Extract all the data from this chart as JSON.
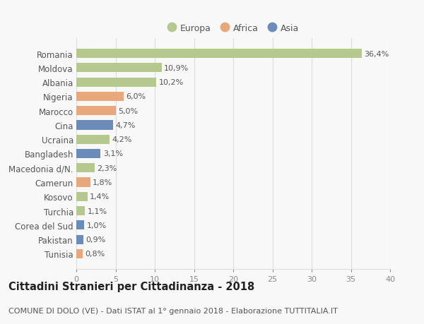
{
  "categories": [
    "Tunisia",
    "Pakistan",
    "Corea del Sud",
    "Turchia",
    "Kosovo",
    "Camerun",
    "Macedonia d/N.",
    "Bangladesh",
    "Ucraina",
    "Cina",
    "Marocco",
    "Nigeria",
    "Albania",
    "Moldova",
    "Romania"
  ],
  "values": [
    0.8,
    0.9,
    1.0,
    1.1,
    1.4,
    1.8,
    2.3,
    3.1,
    4.2,
    4.7,
    5.0,
    6.0,
    10.2,
    10.9,
    36.4
  ],
  "labels": [
    "0,8%",
    "0,9%",
    "1,0%",
    "1,1%",
    "1,4%",
    "1,8%",
    "2,3%",
    "3,1%",
    "4,2%",
    "4,7%",
    "5,0%",
    "6,0%",
    "10,2%",
    "10,9%",
    "36,4%"
  ],
  "continents": [
    "Africa",
    "Asia",
    "Asia",
    "Europa",
    "Europa",
    "Africa",
    "Europa",
    "Asia",
    "Europa",
    "Asia",
    "Africa",
    "Africa",
    "Europa",
    "Europa",
    "Europa"
  ],
  "continent_colors": {
    "Europa": "#b5c98e",
    "Africa": "#e8a87c",
    "Asia": "#6b8cba"
  },
  "legend_labels": [
    "Europa",
    "Africa",
    "Asia"
  ],
  "legend_colors": [
    "#b5c98e",
    "#e8a87c",
    "#6b8cba"
  ],
  "xlim": [
    0,
    40
  ],
  "xticks": [
    0,
    5,
    10,
    15,
    20,
    25,
    30,
    35,
    40
  ],
  "title": "Cittadini Stranieri per Cittadinanza - 2018",
  "subtitle": "COMUNE DI DOLO (VE) - Dati ISTAT al 1° gennaio 2018 - Elaborazione TUTTITALIA.IT",
  "background_color": "#f8f8f8",
  "grid_color": "#dddddd",
  "bar_height": 0.65,
  "label_fontsize": 8.0,
  "ytick_fontsize": 8.5,
  "xtick_fontsize": 8.0,
  "title_fontsize": 10.5,
  "subtitle_fontsize": 8.0
}
